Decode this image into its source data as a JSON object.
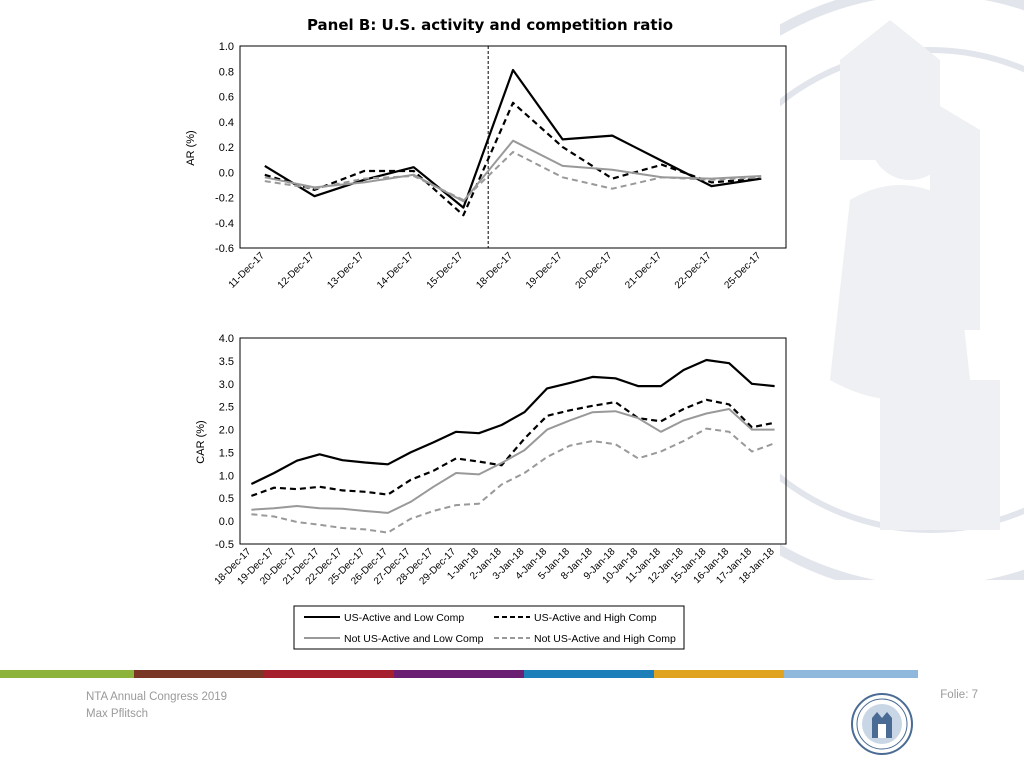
{
  "footer": {
    "conference": "NTA Annual Congress 2019",
    "author": "Max Pflitsch",
    "slide_label": "Folie: 7"
  },
  "colors": {
    "strip": [
      "#8db43a",
      "#7a3725",
      "#a61f2c",
      "#6b1f73",
      "#1d7fba",
      "#e0a321",
      "#8fb8dc"
    ],
    "series": [
      "#000000",
      "#000000",
      "#999999",
      "#999999"
    ]
  },
  "icons": {
    "logo": "university-seal-icon",
    "background": "seal-watermark-icon"
  },
  "chart_data": [
    {
      "type": "line",
      "title": "Panel B: U.S. activity and competition ratio",
      "ylabel": "AR (%)",
      "xlabel": "",
      "ylim": [
        -0.6,
        1.0
      ],
      "yticks": [
        "1.0",
        "0.8",
        "0.6",
        "0.4",
        "0.2",
        "0.0",
        "-0.2",
        "-0.4",
        "-0.6"
      ],
      "categories": [
        "11-Dec-17",
        "12-Dec-17",
        "13-Dec-17",
        "14-Dec-17",
        "15-Dec-17",
        "18-Dec-17",
        "19-Dec-17",
        "20-Dec-17",
        "21-Dec-17",
        "22-Dec-17",
        "25-Dec-17"
      ],
      "event_line_category": "15-Dec-17",
      "legend": false,
      "grid": false,
      "series": [
        {
          "style": "solid-black",
          "values": [
            0.05,
            -0.19,
            -0.06,
            0.04,
            -0.28,
            0.81,
            0.26,
            0.29,
            0.09,
            -0.11,
            -0.05
          ]
        },
        {
          "style": "dashed-black",
          "values": [
            -0.02,
            -0.14,
            0.01,
            0.01,
            -0.34,
            0.55,
            0.2,
            -0.05,
            0.06,
            -0.08,
            -0.05
          ]
        },
        {
          "style": "solid-gray",
          "values": [
            -0.04,
            -0.12,
            -0.08,
            -0.02,
            -0.23,
            0.25,
            0.05,
            0.02,
            -0.04,
            -0.05,
            -0.03
          ]
        },
        {
          "style": "dashed-gray",
          "values": [
            -0.07,
            -0.13,
            -0.05,
            -0.03,
            -0.22,
            0.16,
            -0.04,
            -0.13,
            -0.04,
            -0.06,
            -0.04
          ]
        }
      ]
    },
    {
      "type": "line",
      "title": "",
      "ylabel": "CAR (%)",
      "xlabel": "",
      "ylim": [
        -0.5,
        4.0
      ],
      "yticks": [
        "4.0",
        "3.5",
        "3.0",
        "2.5",
        "2.0",
        "1.5",
        "1.0",
        "0.5",
        "0.0",
        "-0.5"
      ],
      "categories": [
        "18-Dec-17",
        "19-Dec-17",
        "20-Dec-17",
        "21-Dec-17",
        "22-Dec-17",
        "25-Dec-17",
        "26-Dec-17",
        "27-Dec-17",
        "28-Dec-17",
        "29-Dec-17",
        "1-Jan-18",
        "2-Jan-18",
        "3-Jan-18",
        "4-Jan-18",
        "5-Jan-18",
        "8-Jan-18",
        "9-Jan-18",
        "10-Jan-18",
        "11-Jan-18",
        "12-Jan-18",
        "15-Jan-18",
        "16-Jan-18",
        "17-Jan-18",
        "18-Jan-18"
      ],
      "legend": true,
      "legend_position": "bottom",
      "grid": false,
      "series": [
        {
          "name": "US-Active and Low Comp",
          "style": "solid-black",
          "values": [
            0.81,
            1.05,
            1.32,
            1.46,
            1.33,
            1.28,
            1.24,
            1.5,
            1.72,
            1.95,
            1.92,
            2.1,
            2.38,
            2.9,
            3.02,
            3.15,
            3.12,
            2.95,
            2.95,
            3.3,
            3.52,
            3.45,
            3.0,
            2.95
          ]
        },
        {
          "name": "US-Active and High Comp",
          "style": "dashed-black",
          "values": [
            0.55,
            0.73,
            0.7,
            0.75,
            0.67,
            0.64,
            0.58,
            0.9,
            1.1,
            1.37,
            1.3,
            1.22,
            1.8,
            2.3,
            2.42,
            2.52,
            2.6,
            2.25,
            2.18,
            2.45,
            2.65,
            2.55,
            2.05,
            2.15
          ]
        },
        {
          "name": "Not US-Active and Low Comp",
          "style": "solid-gray",
          "values": [
            0.25,
            0.28,
            0.33,
            0.28,
            0.27,
            0.22,
            0.18,
            0.42,
            0.75,
            1.05,
            1.02,
            1.27,
            1.55,
            2.0,
            2.2,
            2.38,
            2.4,
            2.25,
            1.95,
            2.2,
            2.35,
            2.45,
            2.0,
            2.0
          ]
        },
        {
          "name": "Not US-Active and High Comp",
          "style": "dashed-gray",
          "values": [
            0.15,
            0.1,
            -0.02,
            -0.08,
            -0.15,
            -0.18,
            -0.25,
            0.05,
            0.22,
            0.35,
            0.38,
            0.8,
            1.05,
            1.4,
            1.65,
            1.75,
            1.68,
            1.37,
            1.52,
            1.75,
            2.02,
            1.95,
            1.52,
            1.7
          ]
        }
      ]
    }
  ]
}
